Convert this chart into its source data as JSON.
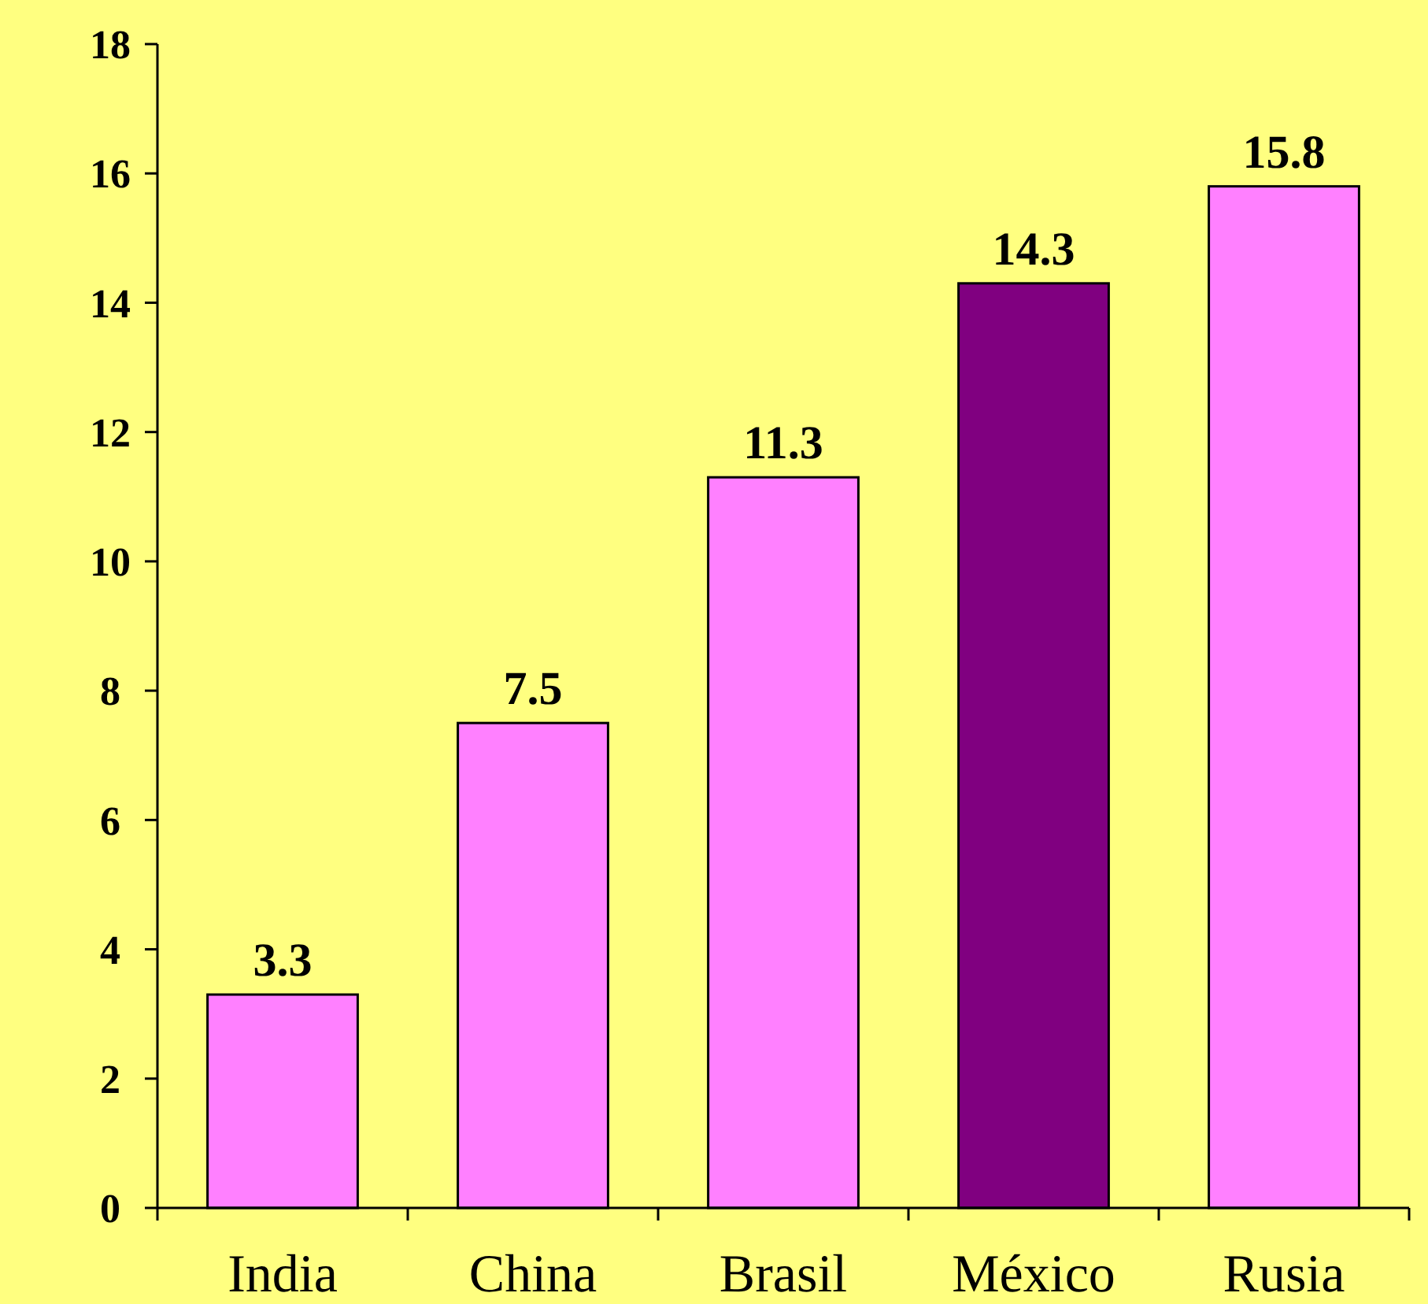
{
  "chart_data": {
    "type": "bar",
    "categories": [
      "India",
      "China",
      "Brasil",
      "México",
      "Rusia"
    ],
    "values": [
      3.3,
      7.5,
      11.3,
      14.3,
      15.8
    ],
    "colors": [
      "#ff80ff",
      "#ff80ff",
      "#ff80ff",
      "#800080",
      "#ff80ff"
    ],
    "ylim": [
      0,
      18
    ],
    "yticks": [
      0,
      2,
      4,
      6,
      8,
      10,
      12,
      14,
      16,
      18
    ],
    "grid": false,
    "data_labels": true
  }
}
